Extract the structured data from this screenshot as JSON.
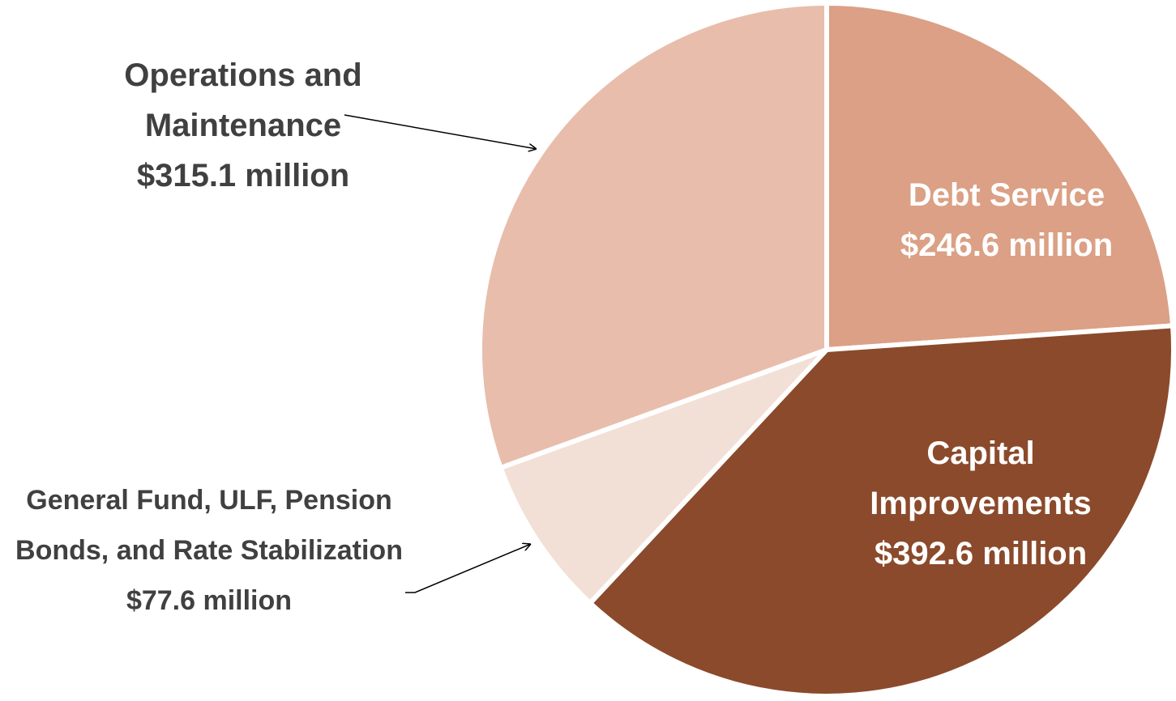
{
  "chart_data": {
    "type": "pie",
    "categories": [
      "Debt Service",
      "Capital Improvements",
      "General Fund, ULF, Pension Bonds, and Rate Stabilization",
      "Operations and Maintenance"
    ],
    "values": [
      246.6,
      392.6,
      77.6,
      315.1
    ],
    "value_labels": [
      "$246.6 million",
      "$392.6 million",
      "$77.6 million",
      "$315.1 million"
    ],
    "colors": [
      "#dba085",
      "#8b4a2b",
      "#f2e0d7",
      "#e8bdab"
    ],
    "label_colors": [
      "#ffffff",
      "#ffffff",
      "#404040",
      "#404040"
    ]
  }
}
